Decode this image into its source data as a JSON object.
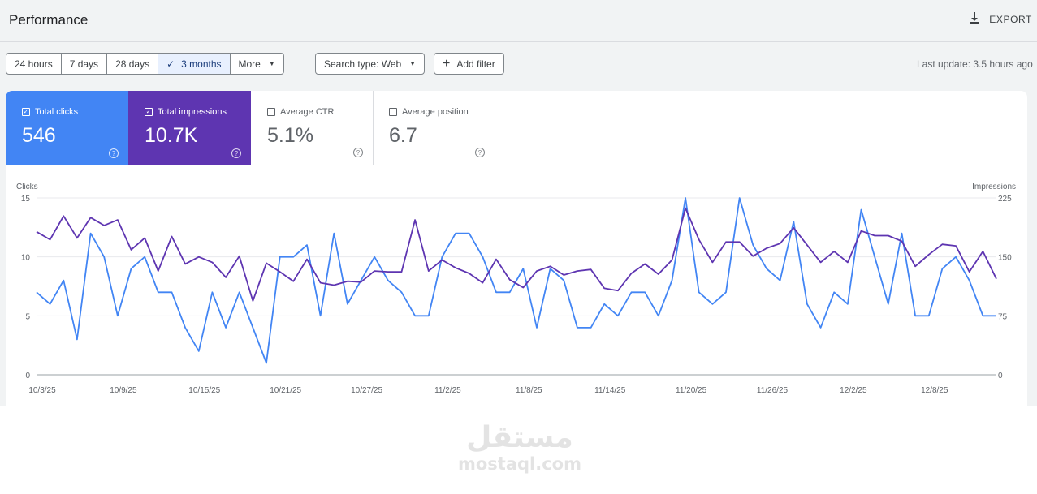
{
  "header": {
    "title": "Performance",
    "export_label": "EXPORT"
  },
  "toolbar": {
    "ranges": [
      "24 hours",
      "7 days",
      "28 days",
      "3 months"
    ],
    "active_range": "3 months",
    "more_label": "More",
    "search_type_label": "Search type: Web",
    "add_filter_label": "Add filter",
    "last_update": "Last update: 3.5 hours ago"
  },
  "metrics": {
    "clicks": {
      "label": "Total clicks",
      "value": "546",
      "checked": true,
      "color": "#4285f4"
    },
    "impressions": {
      "label": "Total impressions",
      "value": "10.7K",
      "checked": true,
      "color": "#5e35b1"
    },
    "ctr": {
      "label": "Average CTR",
      "value": "5.1%",
      "checked": false
    },
    "position": {
      "label": "Average position",
      "value": "6.7",
      "checked": false
    }
  },
  "chart_data": {
    "type": "line",
    "ylabel_left": "Clicks",
    "ylabel_right": "Impressions",
    "ylim_left": [
      0,
      15
    ],
    "ylim_right": [
      0,
      225
    ],
    "yticks_left": [
      0,
      5,
      10,
      15
    ],
    "yticks_right": [
      0,
      75,
      150,
      225
    ],
    "grid": true,
    "x_tick_labels": [
      "10/3/25",
      "10/9/25",
      "10/15/25",
      "10/21/25",
      "10/27/25",
      "11/2/25",
      "11/8/25",
      "11/14/25",
      "11/20/25",
      "11/26/25",
      "12/2/25",
      "12/8/25"
    ],
    "x_tick_days": [
      0,
      6,
      12,
      18,
      24,
      30,
      36,
      42,
      48,
      54,
      60,
      66
    ],
    "series": [
      {
        "name": "Clicks",
        "axis": "left",
        "color": "#4285f4",
        "values": [
          7,
          6,
          8,
          3,
          12,
          10,
          5,
          9,
          10,
          7,
          7,
          4,
          2,
          7,
          4,
          7,
          4,
          1,
          10,
          10,
          11,
          5,
          12,
          6,
          8,
          10,
          8,
          7,
          5,
          5,
          10,
          12,
          12,
          10,
          7,
          7,
          9,
          4,
          9,
          8,
          4,
          4,
          6,
          5,
          7,
          7,
          5,
          8,
          15,
          7,
          6,
          7,
          15,
          11,
          9,
          8,
          13,
          6,
          4,
          7,
          6,
          14,
          10,
          6,
          12,
          5,
          5,
          9,
          10,
          8,
          5,
          5
        ]
      },
      {
        "name": "Impressions",
        "axis": "right",
        "color": "#5e35b1",
        "values": [
          182,
          172,
          202,
          174,
          200,
          190,
          197,
          159,
          174,
          132,
          176,
          141,
          150,
          143,
          124,
          151,
          94,
          142,
          131,
          119,
          147,
          117,
          114,
          119,
          118,
          132,
          131,
          131,
          197,
          132,
          146,
          136,
          129,
          117,
          147,
          121,
          111,
          132,
          138,
          127,
          132,
          134,
          110,
          107,
          129,
          141,
          128,
          146,
          212,
          172,
          143,
          169,
          169,
          151,
          161,
          167,
          187,
          165,
          143,
          157,
          143,
          183,
          177,
          177,
          170,
          138,
          153,
          166,
          164,
          131,
          157,
          122
        ]
      }
    ]
  }
}
